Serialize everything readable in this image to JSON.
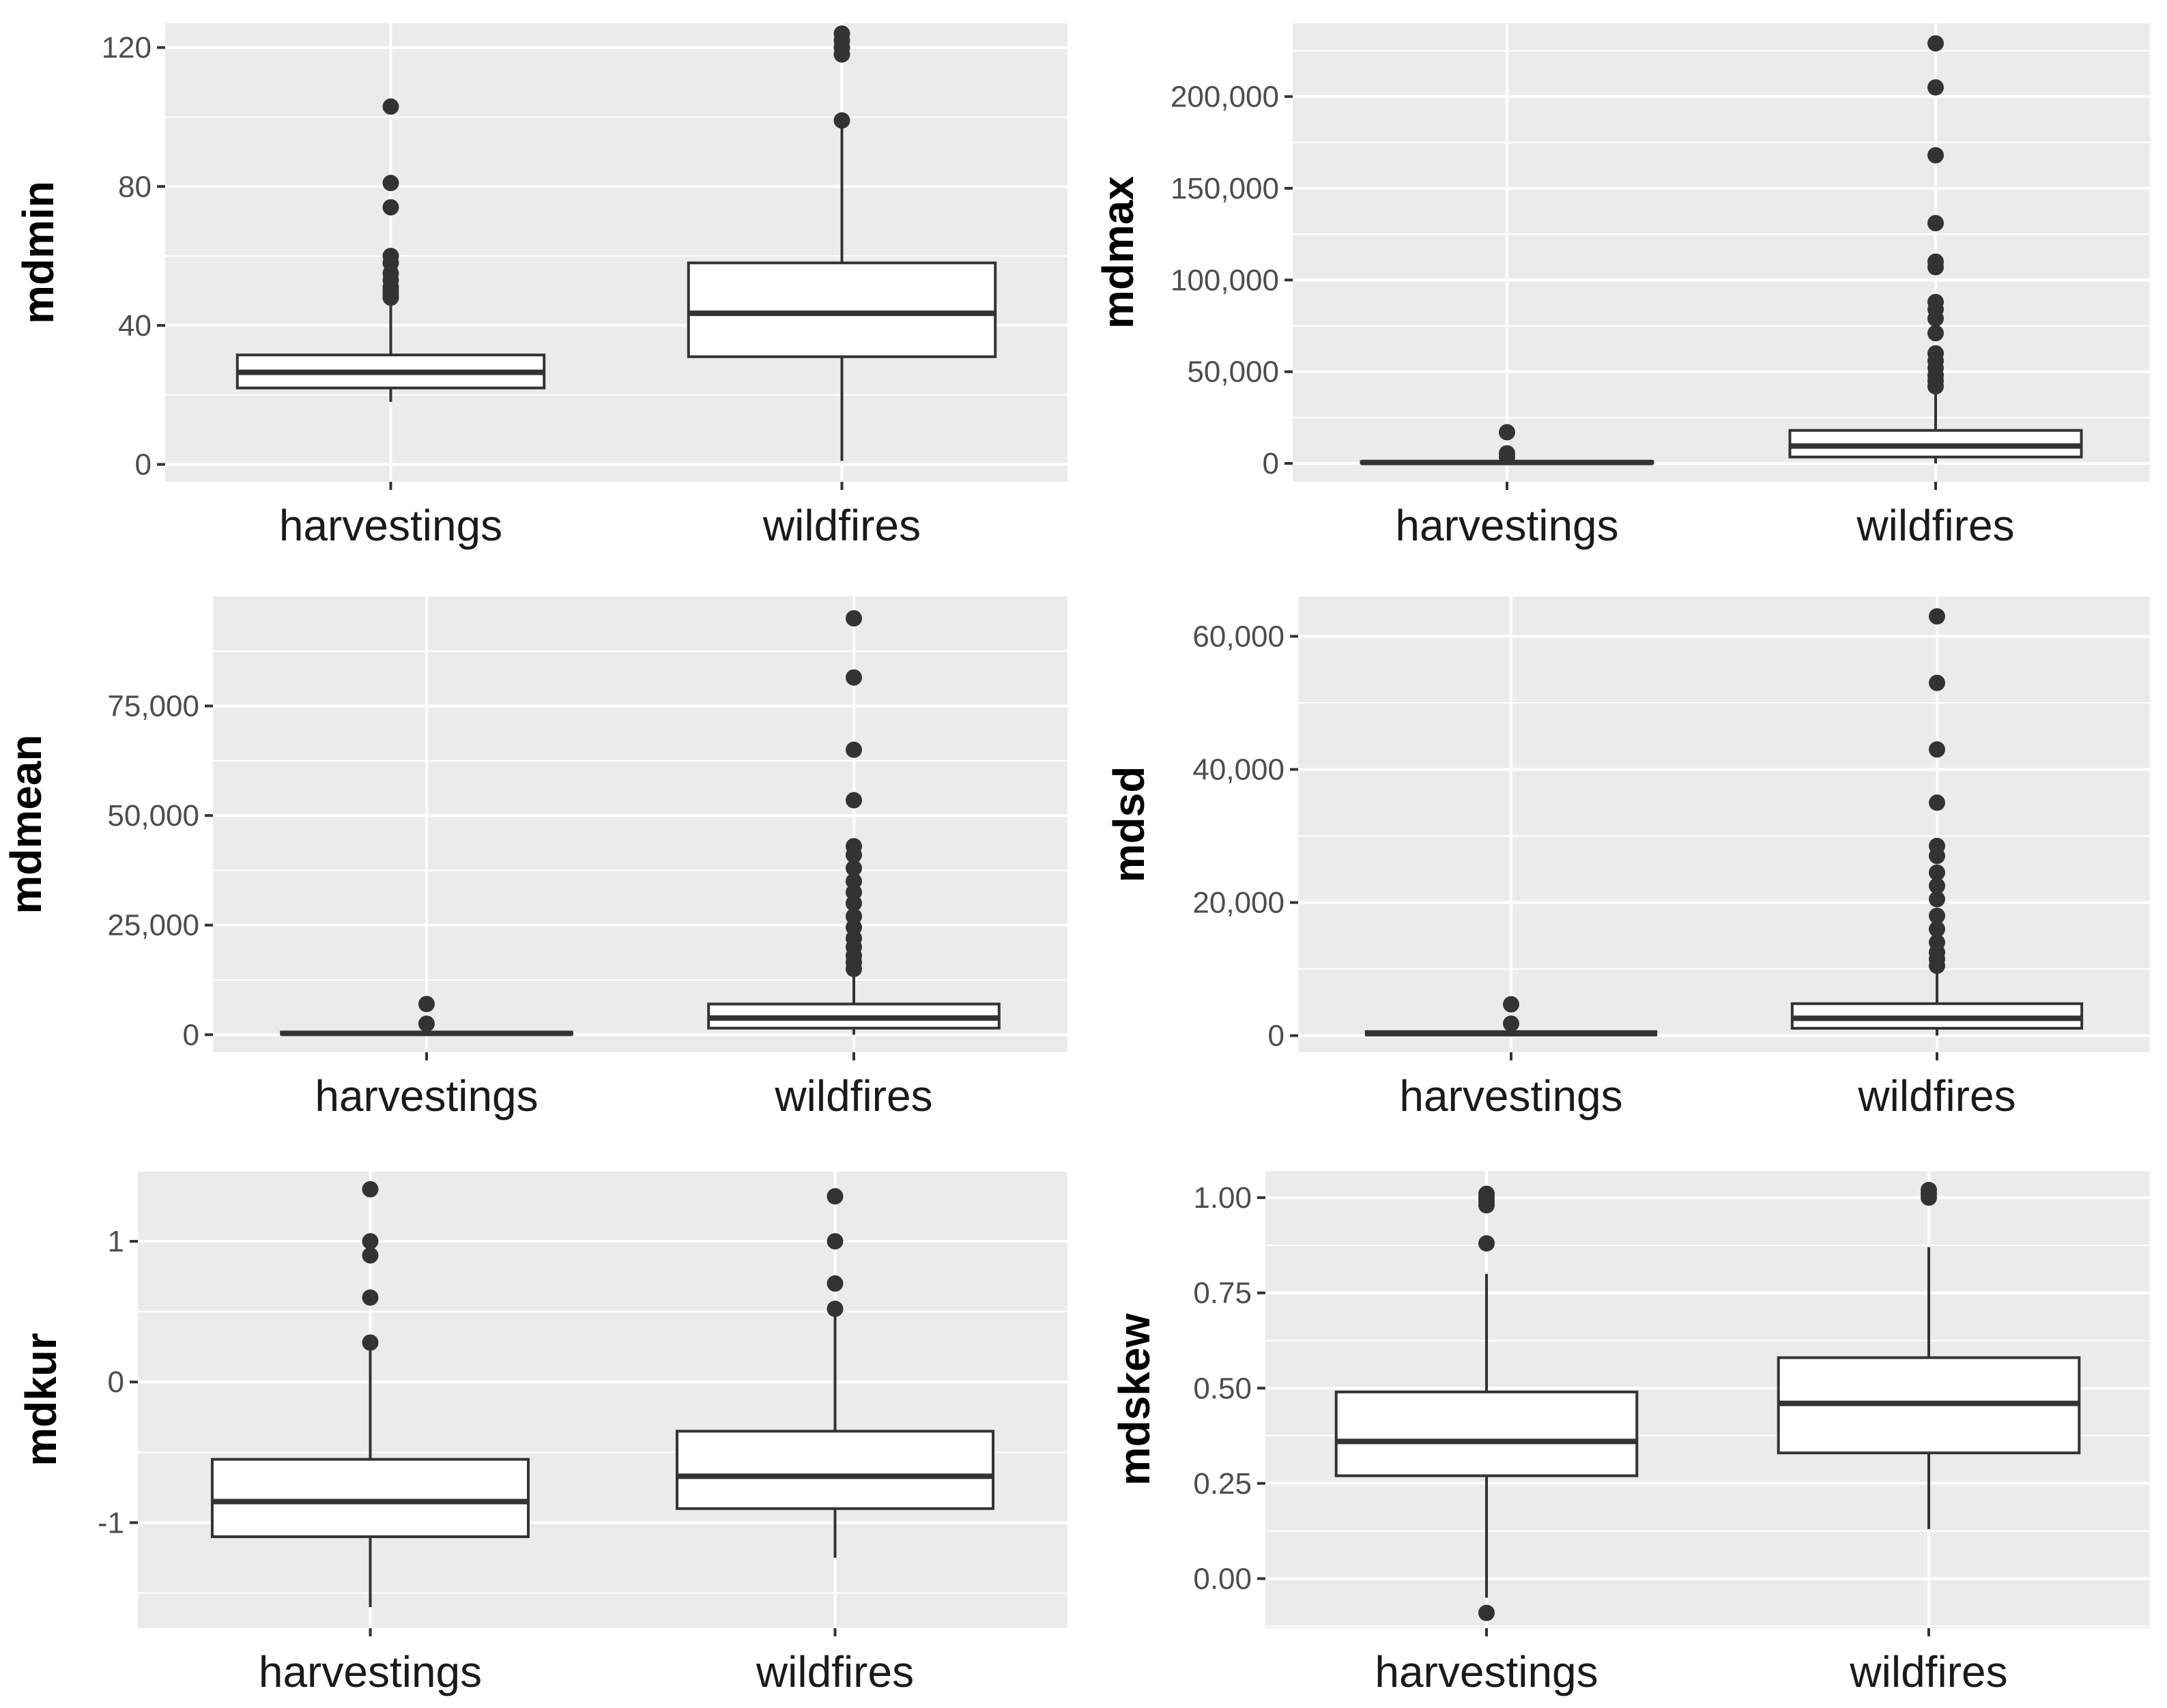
{
  "chart_data": [
    {
      "type": "box",
      "ylabel": "mdmin",
      "categories": [
        "harvestings",
        "wildfires"
      ],
      "ylim": [
        -5,
        127
      ],
      "yticks": [
        0,
        40,
        80,
        120
      ],
      "ytick_labels": [
        "0",
        "40",
        "80",
        "120"
      ],
      "boxes": [
        {
          "category": "harvestings",
          "whisker_low": 18,
          "q1": 22,
          "median": 26.5,
          "q3": 31.5,
          "whisker_high": 46,
          "outliers": [
            48,
            49,
            50,
            51,
            53,
            55,
            58,
            60,
            74,
            81,
            103
          ]
        },
        {
          "category": "wildfires",
          "whisker_low": 1,
          "q1": 31,
          "median": 43.5,
          "q3": 58,
          "whisker_high": 98,
          "outliers": [
            99,
            118,
            120,
            122,
            124
          ]
        }
      ]
    },
    {
      "type": "box",
      "ylabel": "mdmax",
      "categories": [
        "harvestings",
        "wildfires"
      ],
      "ylim": [
        -10000,
        240000
      ],
      "yticks": [
        0,
        50000,
        100000,
        150000,
        200000
      ],
      "ytick_labels": [
        "0",
        "50,000",
        "100,000",
        "150,000",
        "200,000"
      ],
      "boxes": [
        {
          "category": "harvestings",
          "whisker_low": 0,
          "q1": 200,
          "median": 500,
          "q3": 1000,
          "whisker_high": 2000,
          "outliers": [
            3500,
            5500,
            17000
          ]
        },
        {
          "category": "wildfires",
          "whisker_low": 0,
          "q1": 3500,
          "median": 9500,
          "q3": 18000,
          "whisker_high": 38000,
          "outliers": [
            42000,
            45000,
            48000,
            52000,
            56000,
            60000,
            71000,
            79000,
            84000,
            88000,
            107000,
            110000,
            131000,
            168000,
            205000,
            229000
          ]
        }
      ]
    },
    {
      "type": "box",
      "ylabel": "mdmean",
      "categories": [
        "harvestings",
        "wildfires"
      ],
      "ylim": [
        -4000,
        100000
      ],
      "yticks": [
        0,
        25000,
        50000,
        75000
      ],
      "ytick_labels": [
        "0",
        "25,000",
        "50,000",
        "75,000"
      ],
      "boxes": [
        {
          "category": "harvestings",
          "whisker_low": 0,
          "q1": 100,
          "median": 300,
          "q3": 600,
          "whisker_high": 1000,
          "outliers": [
            2500,
            7000
          ]
        },
        {
          "category": "wildfires",
          "whisker_low": 0,
          "q1": 1500,
          "median": 3800,
          "q3": 7000,
          "whisker_high": 14000,
          "outliers": [
            15000,
            16500,
            18000,
            20000,
            22000,
            24500,
            27000,
            30000,
            32500,
            35000,
            38000,
            41000,
            43000,
            53500,
            65000,
            81500,
            95000
          ]
        }
      ]
    },
    {
      "type": "box",
      "ylabel": "mdsd",
      "categories": [
        "harvestings",
        "wildfires"
      ],
      "ylim": [
        -2500,
        66000
      ],
      "yticks": [
        0,
        20000,
        40000,
        60000
      ],
      "ytick_labels": [
        "0",
        "20,000",
        "40,000",
        "60,000"
      ],
      "boxes": [
        {
          "category": "harvestings",
          "whisker_low": 0,
          "q1": 100,
          "median": 300,
          "q3": 600,
          "whisker_high": 900,
          "outliers": [
            1800,
            4700
          ]
        },
        {
          "category": "wildfires",
          "whisker_low": 0,
          "q1": 1100,
          "median": 2600,
          "q3": 4800,
          "whisker_high": 10000,
          "outliers": [
            10500,
            11500,
            12500,
            14000,
            16000,
            18000,
            20500,
            22500,
            24500,
            27000,
            28500,
            35000,
            43000,
            53000,
            63000
          ]
        }
      ]
    },
    {
      "type": "box",
      "ylabel": "mdkur",
      "categories": [
        "harvestings",
        "wildfires"
      ],
      "ylim": [
        -1.75,
        1.5
      ],
      "yticks": [
        -1,
        0,
        1
      ],
      "ytick_labels": [
        "-1",
        "0",
        "1"
      ],
      "boxes": [
        {
          "category": "harvestings",
          "whisker_low": -1.6,
          "q1": -1.1,
          "median": -0.85,
          "q3": -0.55,
          "whisker_high": 0.25,
          "outliers": [
            0.28,
            0.6,
            0.9,
            1.0,
            1.37
          ]
        },
        {
          "category": "wildfires",
          "whisker_low": -1.25,
          "q1": -0.9,
          "median": -0.67,
          "q3": -0.35,
          "whisker_high": 0.48,
          "outliers": [
            0.52,
            0.7,
            1.0,
            1.32
          ]
        }
      ]
    },
    {
      "type": "box",
      "ylabel": "mdskew",
      "categories": [
        "harvestings",
        "wildfires"
      ],
      "ylim": [
        -0.13,
        1.07
      ],
      "yticks": [
        0,
        0.25,
        0.5,
        0.75,
        1
      ],
      "ytick_labels": [
        "0.00",
        "0.25",
        "0.50",
        "0.75",
        "1.00"
      ],
      "boxes": [
        {
          "category": "harvestings",
          "whisker_low": -0.05,
          "q1": 0.27,
          "median": 0.36,
          "q3": 0.49,
          "whisker_high": 0.8,
          "outliers": [
            -0.09,
            0.88,
            0.98,
            0.99,
            1.0,
            1.01
          ]
        },
        {
          "category": "wildfires",
          "whisker_low": 0.13,
          "q1": 0.33,
          "median": 0.46,
          "q3": 0.58,
          "whisker_high": 0.87,
          "outliers": [
            1.0,
            1.01,
            1.02
          ]
        }
      ]
    }
  ]
}
